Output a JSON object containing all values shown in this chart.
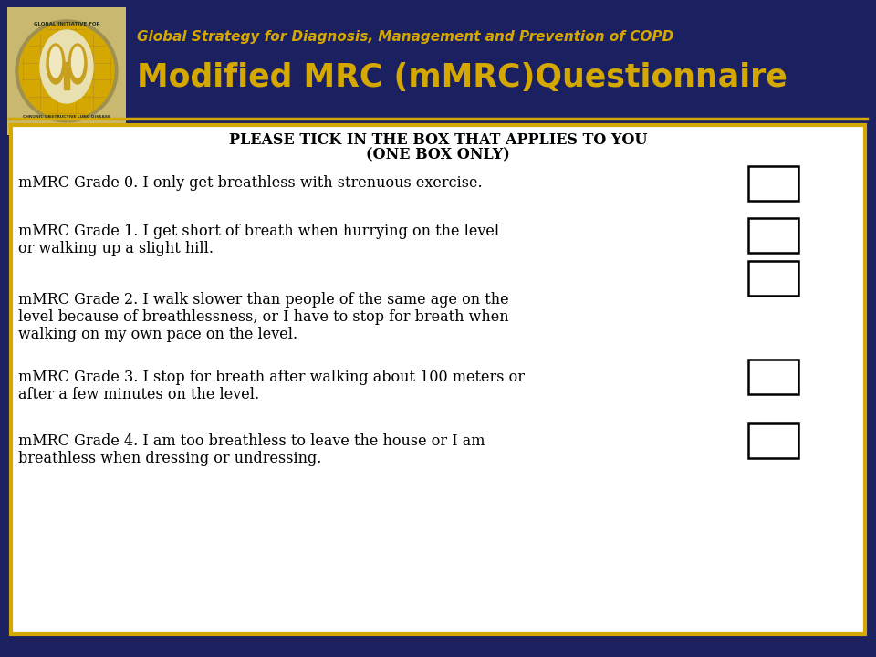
{
  "bg_color": "#1a2060",
  "gold_color": "#d4a800",
  "white_color": "#ffffff",
  "logo_bg": "#c8b870",
  "subtitle_text": "Global Strategy for Diagnosis, Management and Prevention of COPD",
  "title_text": "Modified MRC (mMRC)Questionnaire",
  "header_line1": "PLEASE TICK IN THE BOX THAT APPLIES TO YOU",
  "header_line2": "(ONE BOX ONLY)",
  "grades": [
    {
      "lines": [
        "mMRC Grade 0. I only get breathless with strenuous exercise."
      ]
    },
    {
      "lines": [
        "mMRC Grade 1. I get short of breath when hurrying on the level",
        "or walking up a slight hill."
      ]
    },
    {
      "lines": [
        "mMRC Grade 2. I walk slower than people of the same age on the",
        "level because of breathlessness, or I have to stop for breath when",
        "walking on my own pace on the level."
      ]
    },
    {
      "lines": [
        "mMRC Grade 3. I stop for breath after walking about 100 meters or",
        "after a few minutes on the level."
      ]
    },
    {
      "lines": [
        "mMRC Grade 4. I am too breathless to leave the house or I am",
        "breathless when dressing or undressing."
      ]
    }
  ],
  "fig_width": 9.6,
  "fig_height": 7.2,
  "dpi": 100
}
